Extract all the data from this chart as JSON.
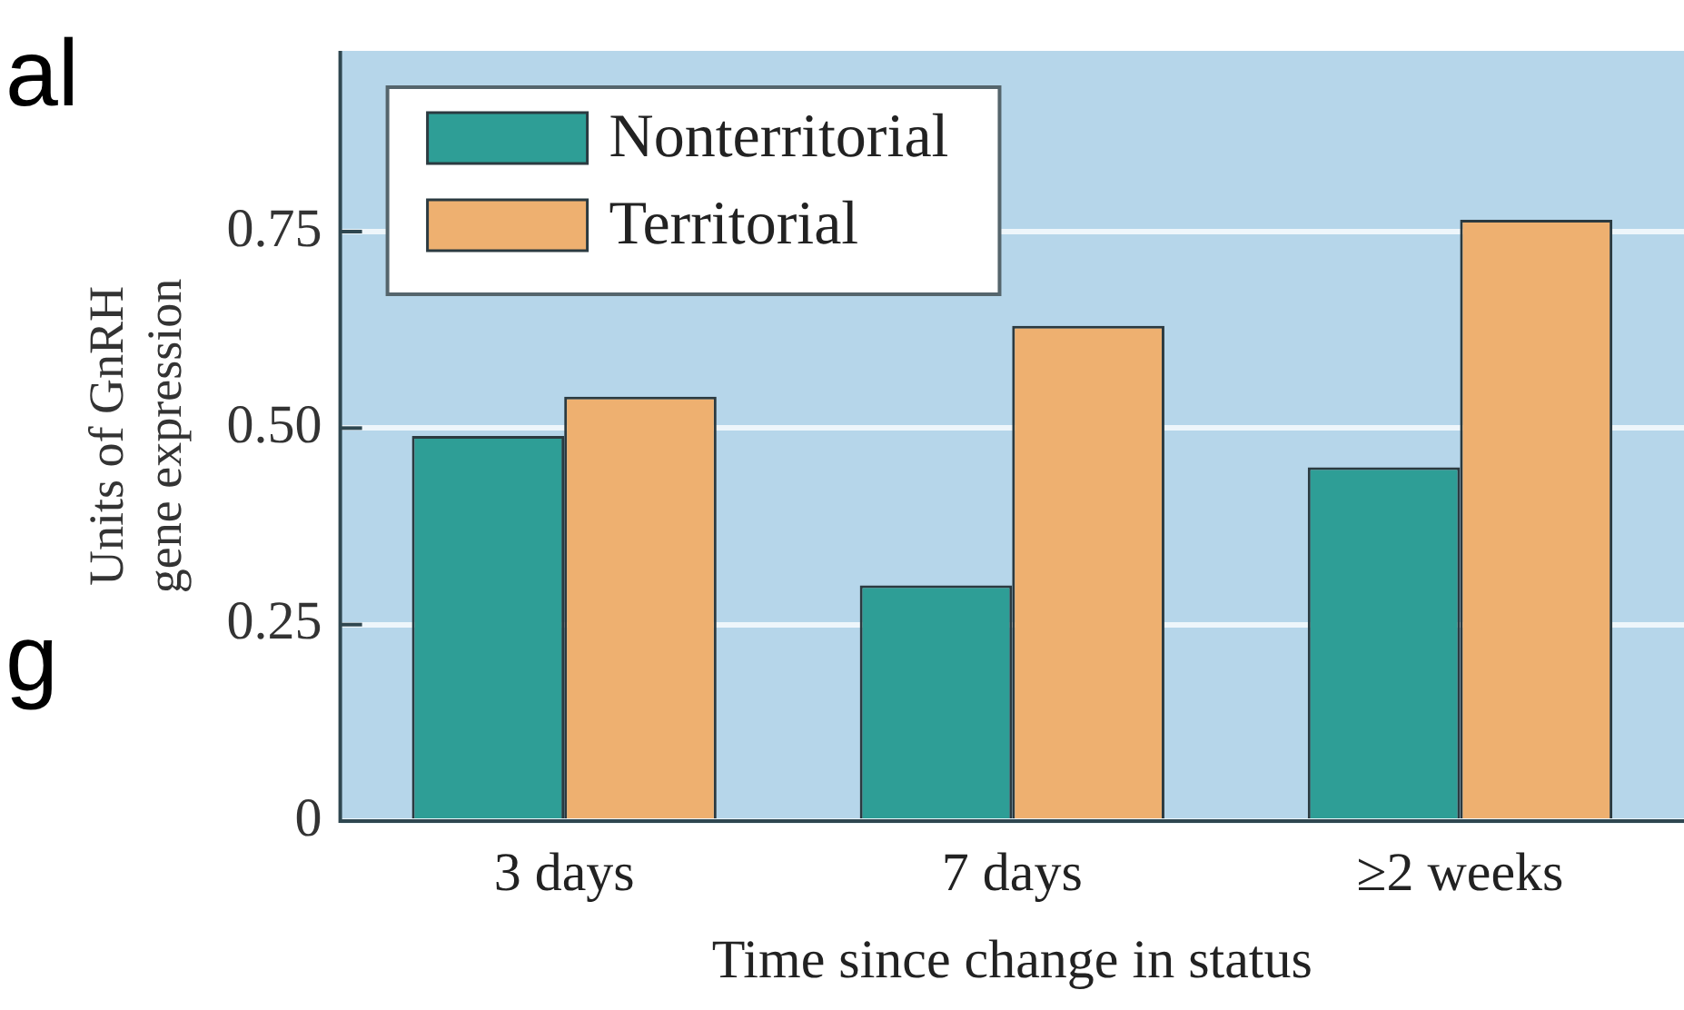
{
  "chart_data": {
    "type": "bar",
    "xlabel": "Time since change in status",
    "ylabel": "Units of GnRH\ngene expression",
    "categories": [
      "3 days",
      "7 days",
      "≥2 weeks"
    ],
    "series": [
      {
        "name": "Nonterritorial",
        "color": "#2e9e96",
        "values": [
          0.49,
          0.3,
          0.45
        ]
      },
      {
        "name": "Territorial",
        "color": "#eeb070",
        "values": [
          0.54,
          0.63,
          0.765
        ]
      }
    ],
    "ylim": [
      0,
      0.98
    ],
    "yticks": [
      {
        "value": 0,
        "label": "0"
      },
      {
        "value": 0.25,
        "label": "0.25"
      },
      {
        "value": 0.5,
        "label": "0.50"
      },
      {
        "value": 0.75,
        "label": "0.75"
      }
    ],
    "grid": "y",
    "legend": "top left",
    "annotations": [
      "al",
      "g"
    ]
  }
}
